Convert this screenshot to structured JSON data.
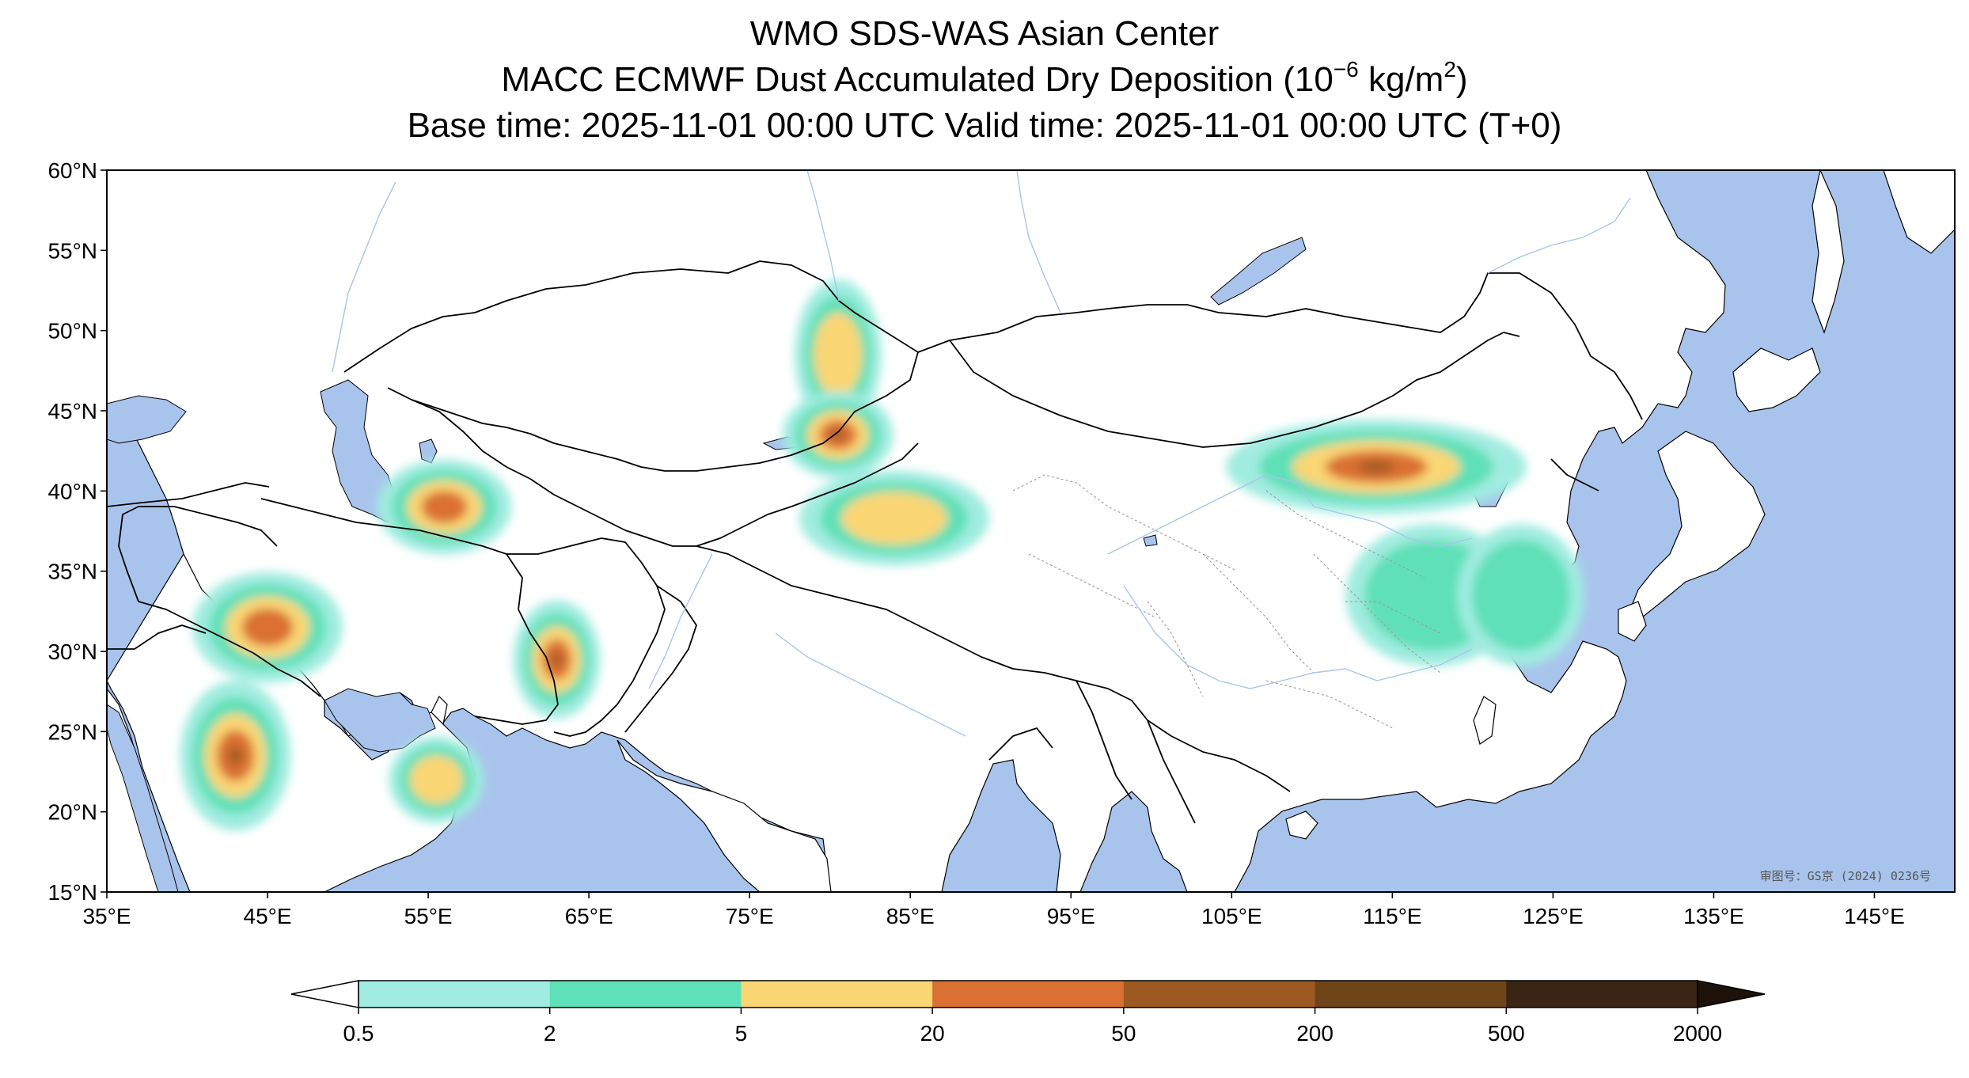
{
  "title": {
    "line1": "WMO SDS-WAS Asian Center",
    "line2_prefix": "MACC ECMWF Dust Accumulated Dry Deposition (10",
    "line2_exp1": "−6",
    "line2_mid": " kg/m",
    "line2_exp2": "2",
    "line2_suffix": ")",
    "line3": "Base time: 2025-11-01 00:00 UTC Valid time: 2025-11-01 00:00 UTC (T+0)"
  },
  "map": {
    "lon_range": [
      35,
      150
    ],
    "lat_range": [
      15,
      60
    ],
    "lat_ticks": [
      {
        "value": 60,
        "label": "60°N"
      },
      {
        "value": 55,
        "label": "55°N"
      },
      {
        "value": 50,
        "label": "50°N"
      },
      {
        "value": 45,
        "label": "45°N"
      },
      {
        "value": 40,
        "label": "40°N"
      },
      {
        "value": 35,
        "label": "35°N"
      },
      {
        "value": 30,
        "label": "30°N"
      },
      {
        "value": 25,
        "label": "25°N"
      },
      {
        "value": 20,
        "label": "20°N"
      },
      {
        "value": 15,
        "label": "15°N"
      }
    ],
    "lon_ticks": [
      {
        "value": 35,
        "label": "35°E"
      },
      {
        "value": 45,
        "label": "45°E"
      },
      {
        "value": 55,
        "label": "55°E"
      },
      {
        "value": 65,
        "label": "65°E"
      },
      {
        "value": 75,
        "label": "75°E"
      },
      {
        "value": 85,
        "label": "85°E"
      },
      {
        "value": 95,
        "label": "95°E"
      },
      {
        "value": 105,
        "label": "105°E"
      },
      {
        "value": 115,
        "label": "115°E"
      },
      {
        "value": 125,
        "label": "125°E"
      },
      {
        "value": 135,
        "label": "135°E"
      },
      {
        "value": 145,
        "label": "145°E"
      }
    ],
    "stamp": "审图号：GS京 (2024) 0236号",
    "colors": {
      "ocean": "#a9c4ec",
      "land": "#ffffff",
      "river": "#a9c4ec",
      "border": "#000000"
    }
  },
  "colorbar": {
    "levels": [
      "0.5",
      "2",
      "5",
      "20",
      "50",
      "200",
      "500",
      "2000"
    ],
    "colors": [
      "#a0ece0",
      "#5ee0b8",
      "#fad674",
      "#da7033",
      "#9c5a22",
      "#6e4419",
      "#3a2414"
    ],
    "under_color": "#ffffff",
    "over_color": "#1d120a"
  },
  "dust_regions": [
    {
      "name": "Arabian Peninsula north",
      "lon": 45.0,
      "lat": 31.5,
      "level": 3
    },
    {
      "name": "Arabian Peninsula south",
      "lon": 43.0,
      "lat": 23.5,
      "level": 4
    },
    {
      "name": "Helmand basin",
      "lon": 63.0,
      "lat": 29.5,
      "level": 4
    },
    {
      "name": "Gulf of Oman coast",
      "lon": 55.5,
      "lat": 22.0,
      "level": 2
    },
    {
      "name": "Karakum",
      "lon": 56.0,
      "lat": 39.0,
      "level": 3
    },
    {
      "name": "Kazakh steppe",
      "lon": 80.5,
      "lat": 48.5,
      "level": 2
    },
    {
      "name": "Balkhash",
      "lon": 80.5,
      "lat": 43.5,
      "level": 4
    },
    {
      "name": "Taklimakan",
      "lon": 84.0,
      "lat": 38.3,
      "level": 2
    },
    {
      "name": "Inner Mongolia / Gobi",
      "lon": 114.0,
      "lat": 41.5,
      "level": 4
    },
    {
      "name": "North China Plain",
      "lon": 117.5,
      "lat": 33.5,
      "level": 1
    },
    {
      "name": "Yellow Sea",
      "lon": 123.0,
      "lat": 33.5,
      "level": 1
    }
  ]
}
